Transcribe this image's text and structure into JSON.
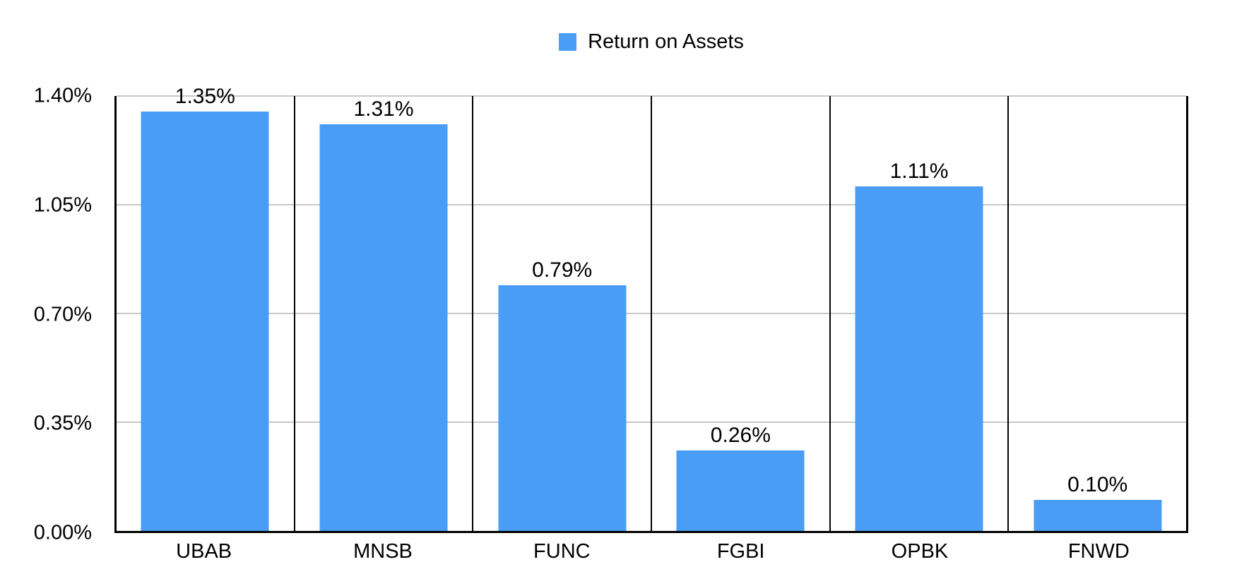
{
  "chart_data": {
    "type": "bar",
    "title": "",
    "series_name": "Return on Assets",
    "categories": [
      "UBAB",
      "MNSB",
      "FUNC",
      "FGBI",
      "OPBK",
      "FNWD"
    ],
    "values": [
      1.35,
      1.31,
      0.79,
      0.26,
      1.11,
      0.1
    ],
    "data_labels": [
      "1.35%",
      "1.31%",
      "0.79%",
      "0.26%",
      "1.11%",
      "0.10%"
    ],
    "xlabel": "",
    "ylabel": "",
    "ylim": [
      0,
      1.4
    ],
    "ytick_labels": [
      "0.00%",
      "0.35%",
      "0.70%",
      "1.05%",
      "1.40%"
    ],
    "grid": "horizontal-on",
    "legend_position": "top-center",
    "bar_color_hex": "#4A9DF4",
    "gridline_color_hex": "#C9C9C9",
    "axis_color_hex": "#000000",
    "text_color_hex": "#000000",
    "background_color_hex": "#FFFFFF"
  }
}
